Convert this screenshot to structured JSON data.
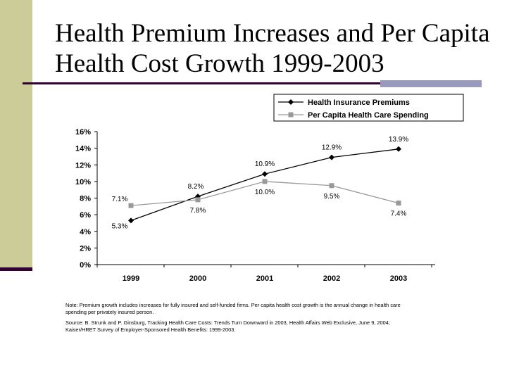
{
  "slide": {
    "title": "Health Premium Increases and Per Capita Health Cost Growth 1999-2003"
  },
  "colors": {
    "series_premiums": "#000000",
    "series_spending": "#999999",
    "title_rule": "#330033",
    "accent_bar": "#cccc99"
  },
  "chart_data": {
    "type": "line",
    "categories": [
      "1999",
      "2000",
      "2001",
      "2002",
      "2003"
    ],
    "series": [
      {
        "name": "Health Insurance Premiums",
        "values": [
          5.3,
          8.2,
          10.9,
          12.9,
          13.9
        ],
        "labels": [
          "5.3%",
          "8.2%",
          "10.9%",
          "12.9%",
          "13.9%"
        ],
        "marker": "diamond"
      },
      {
        "name": "Per Capita Health Care Spending",
        "values": [
          7.1,
          7.8,
          10.0,
          9.5,
          7.4
        ],
        "labels": [
          "7.1%",
          "7.8%",
          "10.0%",
          "9.5%",
          "7.4%"
        ],
        "marker": "square"
      }
    ],
    "ylim": [
      0,
      16
    ],
    "yticks": [
      "0%",
      "2%",
      "4%",
      "6%",
      "8%",
      "10%",
      "12%",
      "14%",
      "16%"
    ],
    "legend": "top-right",
    "grid": false,
    "notes": [
      "Note: Premium growth includes increases for fully insured and self-funded firms. Per capita health cost growth is the annual change in health care",
      "spending per privately insured person.",
      "Source: B. Strunk and P. Ginsburg, Tracking Health Care Costs: Trends Turn Downward in 2003, Health Affairs Web Exclusive, June 9, 2004;",
      "Kaiser/HRET Survey of Employer-Sponsored Health Benefits: 1999-2003."
    ]
  }
}
